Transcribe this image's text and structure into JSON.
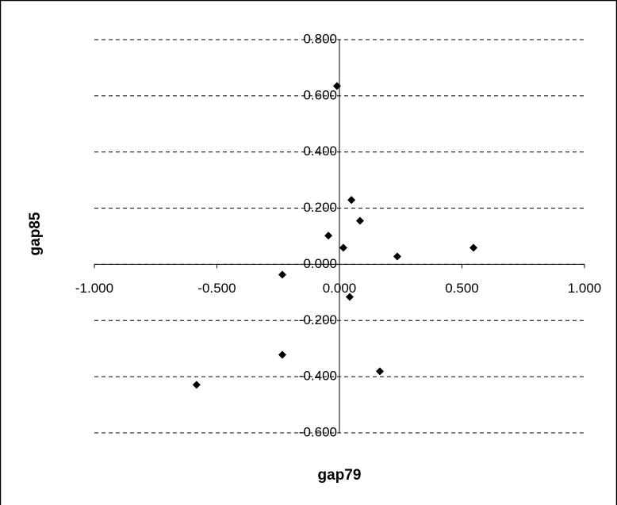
{
  "chart_data": {
    "type": "scatter",
    "x_label": "gap79",
    "y_label": "gap85",
    "x": [
      -0.01,
      0.049,
      0.084,
      -0.045,
      0.016,
      0.236,
      0.547,
      -0.233,
      0.042,
      -0.233,
      0.165,
      -0.583
    ],
    "values": [
      0.635,
      0.229,
      0.155,
      0.102,
      0.059,
      0.028,
      0.059,
      -0.037,
      -0.116,
      -0.322,
      -0.381,
      -0.429
    ],
    "color": "#000000",
    "xlim": [
      -1,
      1
    ],
    "xticks": [
      {
        "value": -1,
        "label": "-1.000"
      },
      {
        "value": -0.5,
        "label": "-0.500"
      },
      {
        "value": 0,
        "label": "0.000"
      },
      {
        "value": 0.5,
        "label": "0.500"
      },
      {
        "value": 1,
        "label": "1.000"
      }
    ],
    "ylim": [
      -0.6,
      0.8
    ],
    "yticks": [
      {
        "value": -0.6,
        "label": "-0.600"
      },
      {
        "value": -0.4,
        "label": "-0.400"
      },
      {
        "value": -0.2,
        "label": "-0.200"
      },
      {
        "value": 0,
        "label": "0.000"
      },
      {
        "value": 0.2,
        "label": "0.200"
      },
      {
        "value": 0.4,
        "label": "0.400"
      },
      {
        "value": 0.6,
        "label": "0.600"
      },
      {
        "value": 0.8,
        "label": "0.800"
      }
    ],
    "grid": true
  }
}
